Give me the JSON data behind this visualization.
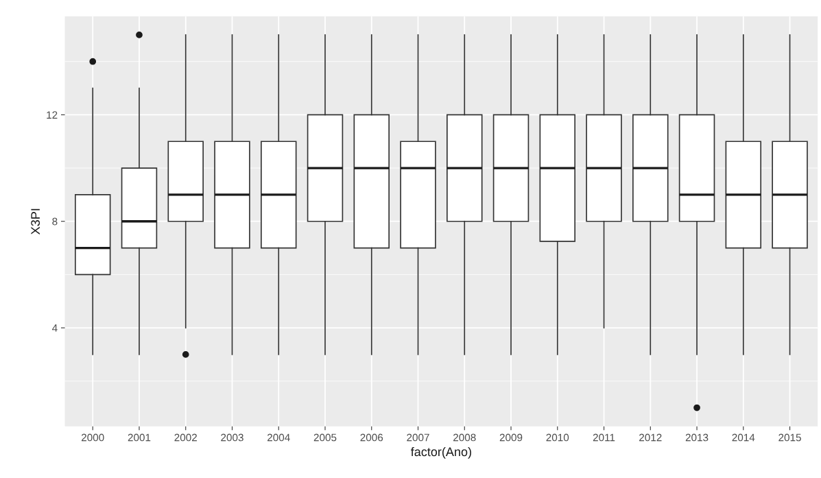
{
  "chart_data": {
    "type": "box",
    "xlabel": "factor(Ano)",
    "ylabel": "X3PI",
    "categories": [
      "2000",
      "2001",
      "2002",
      "2003",
      "2004",
      "2005",
      "2006",
      "2007",
      "2008",
      "2009",
      "2010",
      "2011",
      "2012",
      "2013",
      "2014",
      "2015"
    ],
    "boxes": [
      {
        "low": 3,
        "q1": 6,
        "median": 7,
        "q3": 9,
        "high": 13,
        "outliers": [
          14
        ]
      },
      {
        "low": 3,
        "q1": 7,
        "median": 8,
        "q3": 10,
        "high": 13,
        "outliers": [
          15
        ]
      },
      {
        "low": 4,
        "q1": 8,
        "median": 9,
        "q3": 11,
        "high": 15,
        "outliers": [
          3
        ]
      },
      {
        "low": 3,
        "q1": 7,
        "median": 9,
        "q3": 11,
        "high": 15
      },
      {
        "low": 3,
        "q1": 7,
        "median": 9,
        "q3": 11,
        "high": 15
      },
      {
        "low": 3,
        "q1": 8,
        "median": 10,
        "q3": 12,
        "high": 15
      },
      {
        "low": 3,
        "q1": 7,
        "median": 10,
        "q3": 12,
        "high": 15
      },
      {
        "low": 3,
        "q1": 7,
        "median": 10,
        "q3": 11,
        "high": 15
      },
      {
        "low": 3,
        "q1": 8,
        "median": 10,
        "q3": 12,
        "high": 15
      },
      {
        "low": 3,
        "q1": 8,
        "median": 10,
        "q3": 12,
        "high": 15
      },
      {
        "low": 3,
        "q1": 7.25,
        "median": 10,
        "q3": 12,
        "high": 15
      },
      {
        "low": 4,
        "q1": 8,
        "median": 10,
        "q3": 12,
        "high": 15
      },
      {
        "low": 3,
        "q1": 8,
        "median": 10,
        "q3": 12,
        "high": 15
      },
      {
        "low": 3,
        "q1": 8,
        "median": 9,
        "q3": 12,
        "high": 15,
        "outliers": [
          1
        ]
      },
      {
        "low": 3,
        "q1": 7,
        "median": 9,
        "q3": 11,
        "high": 15
      },
      {
        "low": 3,
        "q1": 7,
        "median": 9,
        "q3": 11,
        "high": 15
      }
    ],
    "ylim": [
      0.3,
      15.7
    ],
    "yticks": [
      4,
      8,
      12
    ],
    "grid": true
  }
}
